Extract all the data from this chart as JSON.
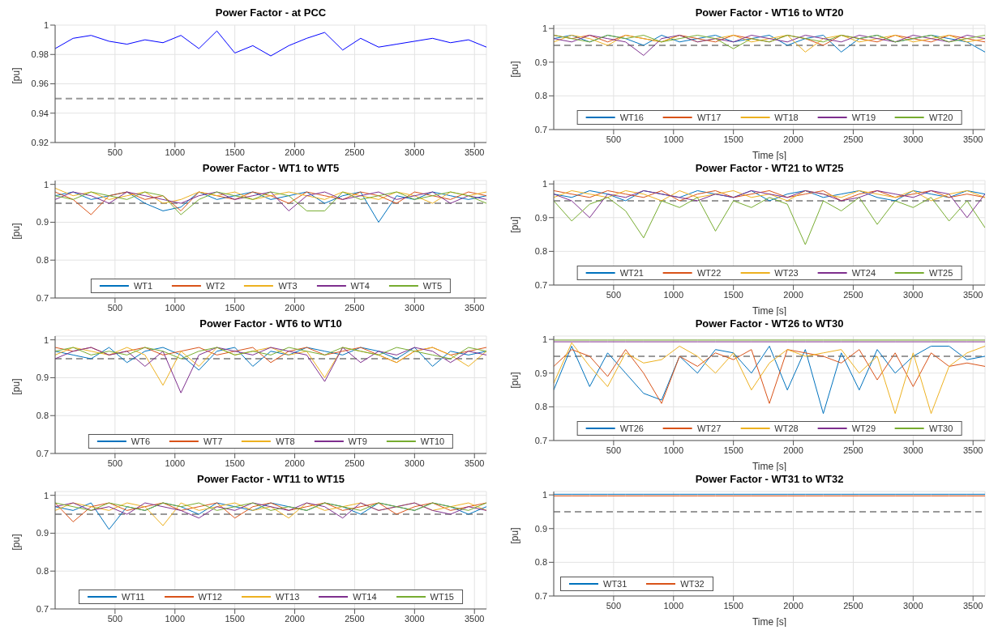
{
  "chart_data": [
    {
      "type": "line",
      "title": "Power Factor - at PCC",
      "ylabel": "[pu]",
      "x": [
        0,
        150,
        300,
        450,
        600,
        750,
        900,
        1050,
        1200,
        1350,
        1500,
        1650,
        1800,
        1950,
        2100,
        2250,
        2400,
        2550,
        2700,
        2850,
        3000,
        3150,
        3300,
        3450,
        3600
      ],
      "xlim": [
        0,
        3600
      ],
      "xticks": [
        500,
        1000,
        1500,
        2000,
        2500,
        3000,
        3500
      ],
      "ylim": [
        0.92,
        1
      ],
      "yticks": [
        0.92,
        0.94,
        0.96,
        0.98,
        1
      ],
      "grid": true,
      "ref_lines": [
        {
          "axis": "y",
          "value": 0.95,
          "color": "#999999",
          "line_style": "dashed"
        }
      ],
      "series": [
        {
          "color": "#0000ff",
          "values": [
            0.984,
            0.991,
            0.993,
            0.989,
            0.987,
            0.99,
            0.988,
            0.993,
            0.984,
            0.996,
            0.981,
            0.986,
            0.979,
            0.986,
            0.991,
            0.995,
            0.983,
            0.991,
            0.985,
            0.987,
            0.989,
            0.991,
            0.988,
            0.99,
            0.985
          ]
        }
      ]
    },
    {
      "type": "line",
      "title": "Power Factor - WT16 to WT20",
      "xlabel": "Time [s]",
      "ylabel": "[pu]",
      "x": [
        0,
        150,
        300,
        450,
        600,
        750,
        900,
        1050,
        1200,
        1350,
        1500,
        1650,
        1800,
        1950,
        2100,
        2250,
        2400,
        2550,
        2700,
        2850,
        3000,
        3150,
        3300,
        3450,
        3600
      ],
      "xlim": [
        0,
        3600
      ],
      "xticks": [
        500,
        1000,
        1500,
        2000,
        2500,
        3000,
        3500
      ],
      "ylim": [
        0.7,
        1.01
      ],
      "yticks": [
        0.7,
        0.8,
        0.9,
        1
      ],
      "grid": true,
      "legend": "bottom",
      "ref_lines": [
        {
          "axis": "y",
          "value": 0.95,
          "color": "#999999",
          "line_style": "dashed"
        }
      ],
      "series": [
        {
          "name": "WT16",
          "color": "#0072bd",
          "values": [
            0.97,
            0.98,
            0.96,
            0.98,
            0.97,
            0.95,
            0.98,
            0.96,
            0.97,
            0.98,
            0.96,
            0.97,
            0.98,
            0.95,
            0.97,
            0.98,
            0.93,
            0.97,
            0.98,
            0.96,
            0.97,
            0.98,
            0.97,
            0.96,
            0.93
          ]
        },
        {
          "name": "WT17",
          "color": "#d95319",
          "values": [
            0.98,
            0.97,
            0.98,
            0.96,
            0.98,
            0.97,
            0.96,
            0.98,
            0.97,
            0.96,
            0.98,
            0.97,
            0.96,
            0.98,
            0.97,
            0.95,
            0.98,
            0.97,
            0.96,
            0.98,
            0.97,
            0.96,
            0.98,
            0.97,
            0.96
          ]
        },
        {
          "name": "WT18",
          "color": "#edb120",
          "values": [
            0.96,
            0.98,
            0.97,
            0.95,
            0.98,
            0.97,
            0.96,
            0.98,
            0.96,
            0.97,
            0.98,
            0.96,
            0.97,
            0.98,
            0.93,
            0.97,
            0.98,
            0.96,
            0.97,
            0.98,
            0.96,
            0.97,
            0.98,
            0.96,
            0.97
          ]
        },
        {
          "name": "WT19",
          "color": "#7e2f8e",
          "values": [
            0.97,
            0.96,
            0.98,
            0.97,
            0.96,
            0.92,
            0.97,
            0.98,
            0.96,
            0.97,
            0.96,
            0.98,
            0.97,
            0.96,
            0.98,
            0.97,
            0.96,
            0.98,
            0.97,
            0.96,
            0.98,
            0.97,
            0.96,
            0.98,
            0.97
          ]
        },
        {
          "name": "WT20",
          "color": "#77ac30",
          "values": [
            0.98,
            0.97,
            0.96,
            0.98,
            0.97,
            0.98,
            0.96,
            0.97,
            0.98,
            0.97,
            0.94,
            0.97,
            0.96,
            0.98,
            0.97,
            0.96,
            0.98,
            0.97,
            0.98,
            0.96,
            0.97,
            0.98,
            0.96,
            0.97,
            0.98
          ]
        }
      ]
    },
    {
      "type": "line",
      "title": "Power Factor - WT1 to WT5",
      "ylabel": "[pu]",
      "x": [
        0,
        150,
        300,
        450,
        600,
        750,
        900,
        1050,
        1200,
        1350,
        1500,
        1650,
        1800,
        1950,
        2100,
        2250,
        2400,
        2550,
        2700,
        2850,
        3000,
        3150,
        3300,
        3450,
        3600
      ],
      "xlim": [
        0,
        3600
      ],
      "xticks": [
        500,
        1000,
        1500,
        2000,
        2500,
        3000,
        3500
      ],
      "ylim": [
        0.7,
        1.01
      ],
      "yticks": [
        0.7,
        0.8,
        0.9,
        1
      ],
      "grid": true,
      "legend": "bottom",
      "ref_lines": [
        {
          "axis": "y",
          "value": 0.95,
          "color": "#999999",
          "line_style": "dashed"
        }
      ],
      "series": [
        {
          "name": "WT1",
          "color": "#0072bd",
          "values": [
            0.97,
            0.98,
            0.96,
            0.97,
            0.98,
            0.95,
            0.93,
            0.94,
            0.98,
            0.96,
            0.97,
            0.98,
            0.96,
            0.97,
            0.98,
            0.95,
            0.97,
            0.98,
            0.9,
            0.97,
            0.96,
            0.98,
            0.97,
            0.96,
            0.97
          ]
        },
        {
          "name": "WT2",
          "color": "#d95319",
          "values": [
            0.98,
            0.96,
            0.92,
            0.97,
            0.98,
            0.96,
            0.97,
            0.93,
            0.98,
            0.97,
            0.96,
            0.98,
            0.97,
            0.95,
            0.98,
            0.97,
            0.96,
            0.98,
            0.97,
            0.95,
            0.98,
            0.97,
            0.96,
            0.98,
            0.97
          ]
        },
        {
          "name": "WT3",
          "color": "#edb120",
          "values": [
            0.99,
            0.97,
            0.98,
            0.96,
            0.97,
            0.98,
            0.95,
            0.96,
            0.98,
            0.97,
            0.98,
            0.96,
            0.97,
            0.98,
            0.97,
            0.96,
            0.98,
            0.97,
            0.96,
            0.98,
            0.97,
            0.95,
            0.98,
            0.97,
            0.98
          ]
        },
        {
          "name": "WT4",
          "color": "#7e2f8e",
          "values": [
            0.96,
            0.98,
            0.97,
            0.95,
            0.98,
            0.97,
            0.96,
            0.95,
            0.97,
            0.98,
            0.96,
            0.97,
            0.98,
            0.93,
            0.97,
            0.98,
            0.96,
            0.97,
            0.98,
            0.96,
            0.97,
            0.98,
            0.95,
            0.97,
            0.96
          ]
        },
        {
          "name": "WT5",
          "color": "#77ac30",
          "values": [
            0.97,
            0.96,
            0.98,
            0.97,
            0.96,
            0.98,
            0.97,
            0.92,
            0.96,
            0.98,
            0.97,
            0.96,
            0.98,
            0.97,
            0.93,
            0.93,
            0.98,
            0.96,
            0.97,
            0.98,
            0.96,
            0.97,
            0.98,
            0.97,
            0.95
          ]
        }
      ]
    },
    {
      "type": "line",
      "title": "Power Factor - WT21 to WT25",
      "xlabel": "Time [s]",
      "ylabel": "[pu]",
      "x": [
        0,
        150,
        300,
        450,
        600,
        750,
        900,
        1050,
        1200,
        1350,
        1500,
        1650,
        1800,
        1950,
        2100,
        2250,
        2400,
        2550,
        2700,
        2850,
        3000,
        3150,
        3300,
        3450,
        3600
      ],
      "xlim": [
        0,
        3600
      ],
      "xticks": [
        500,
        1000,
        1500,
        2000,
        2500,
        3000,
        3500
      ],
      "ylim": [
        0.7,
        1.01
      ],
      "yticks": [
        0.7,
        0.8,
        0.9,
        1
      ],
      "grid": true,
      "legend": "bottom",
      "ref_lines": [
        {
          "axis": "y",
          "value": 0.95,
          "color": "#999999",
          "line_style": "dashed"
        }
      ],
      "series": [
        {
          "name": "WT21",
          "color": "#0072bd",
          "values": [
            0.97,
            0.96,
            0.98,
            0.97,
            0.95,
            0.98,
            0.97,
            0.96,
            0.98,
            0.97,
            0.96,
            0.98,
            0.95,
            0.97,
            0.98,
            0.96,
            0.97,
            0.98,
            0.96,
            0.95,
            0.98,
            0.97,
            0.96,
            0.98,
            0.97
          ]
        },
        {
          "name": "WT22",
          "color": "#d95319",
          "values": [
            0.98,
            0.97,
            0.96,
            0.98,
            0.97,
            0.96,
            0.98,
            0.95,
            0.97,
            0.98,
            0.96,
            0.97,
            0.98,
            0.96,
            0.97,
            0.98,
            0.95,
            0.97,
            0.98,
            0.96,
            0.97,
            0.98,
            0.96,
            0.97,
            0.96
          ]
        },
        {
          "name": "WT23",
          "color": "#edb120",
          "values": [
            0.96,
            0.98,
            0.97,
            0.96,
            0.98,
            0.97,
            0.95,
            0.98,
            0.96,
            0.97,
            0.98,
            0.96,
            0.97,
            0.95,
            0.98,
            0.97,
            0.96,
            0.98,
            0.97,
            0.96,
            0.98,
            0.95,
            0.97,
            0.98,
            0.96
          ]
        },
        {
          "name": "WT24",
          "color": "#7e2f8e",
          "values": [
            0.97,
            0.95,
            0.9,
            0.97,
            0.96,
            0.98,
            0.97,
            0.96,
            0.95,
            0.97,
            0.96,
            0.98,
            0.97,
            0.96,
            0.98,
            0.97,
            0.95,
            0.96,
            0.98,
            0.97,
            0.96,
            0.98,
            0.97,
            0.9,
            0.97
          ]
        },
        {
          "name": "WT25",
          "color": "#77ac30",
          "values": [
            0.95,
            0.89,
            0.94,
            0.96,
            0.92,
            0.84,
            0.95,
            0.93,
            0.96,
            0.86,
            0.95,
            0.93,
            0.96,
            0.94,
            0.82,
            0.95,
            0.92,
            0.96,
            0.88,
            0.95,
            0.93,
            0.96,
            0.89,
            0.95,
            0.87
          ]
        }
      ]
    },
    {
      "type": "line",
      "title": "Power Factor - WT6 to WT10",
      "ylabel": "[pu]",
      "x": [
        0,
        150,
        300,
        450,
        600,
        750,
        900,
        1050,
        1200,
        1350,
        1500,
        1650,
        1800,
        1950,
        2100,
        2250,
        2400,
        2550,
        2700,
        2850,
        3000,
        3150,
        3300,
        3450,
        3600
      ],
      "xlim": [
        0,
        3600
      ],
      "xticks": [
        500,
        1000,
        1500,
        2000,
        2500,
        3000,
        3500
      ],
      "ylim": [
        0.7,
        1.01
      ],
      "yticks": [
        0.7,
        0.8,
        0.9,
        1
      ],
      "grid": true,
      "legend": "bottom",
      "ref_lines": [
        {
          "axis": "y",
          "value": 0.95,
          "color": "#999999",
          "line_style": "dashed"
        }
      ],
      "series": [
        {
          "name": "WT6",
          "color": "#0072bd",
          "values": [
            0.97,
            0.96,
            0.95,
            0.98,
            0.94,
            0.97,
            0.98,
            0.96,
            0.92,
            0.97,
            0.98,
            0.93,
            0.97,
            0.96,
            0.98,
            0.97,
            0.96,
            0.98,
            0.97,
            0.95,
            0.98,
            0.93,
            0.97,
            0.96,
            0.97
          ]
        },
        {
          "name": "WT7",
          "color": "#d95319",
          "values": [
            0.98,
            0.97,
            0.98,
            0.96,
            0.97,
            0.98,
            0.96,
            0.97,
            0.98,
            0.96,
            0.97,
            0.98,
            0.94,
            0.97,
            0.98,
            0.96,
            0.97,
            0.98,
            0.96,
            0.94,
            0.97,
            0.98,
            0.96,
            0.97,
            0.98
          ]
        },
        {
          "name": "WT8",
          "color": "#edb120",
          "values": [
            0.96,
            0.98,
            0.97,
            0.96,
            0.98,
            0.96,
            0.88,
            0.97,
            0.93,
            0.98,
            0.96,
            0.97,
            0.98,
            0.96,
            0.97,
            0.9,
            0.98,
            0.97,
            0.96,
            0.94,
            0.97,
            0.98,
            0.96,
            0.93,
            0.97
          ]
        },
        {
          "name": "WT9",
          "color": "#7e2f8e",
          "values": [
            0.95,
            0.97,
            0.98,
            0.96,
            0.97,
            0.93,
            0.97,
            0.86,
            0.96,
            0.98,
            0.97,
            0.96,
            0.98,
            0.97,
            0.96,
            0.89,
            0.98,
            0.94,
            0.97,
            0.96,
            0.98,
            0.97,
            0.94,
            0.97,
            0.96
          ]
        },
        {
          "name": "WT10",
          "color": "#77ac30",
          "values": [
            0.97,
            0.98,
            0.96,
            0.97,
            0.96,
            0.98,
            0.97,
            0.95,
            0.97,
            0.98,
            0.96,
            0.97,
            0.96,
            0.98,
            0.97,
            0.96,
            0.98,
            0.97,
            0.96,
            0.98,
            0.97,
            0.96,
            0.95,
            0.98,
            0.97
          ]
        }
      ]
    },
    {
      "type": "line",
      "title": "Power Factor - WT26 to WT30",
      "xlabel": "Time [s]",
      "ylabel": "[pu]",
      "x": [
        0,
        150,
        300,
        450,
        600,
        750,
        900,
        1050,
        1200,
        1350,
        1500,
        1650,
        1800,
        1950,
        2100,
        2250,
        2400,
        2550,
        2700,
        2850,
        3000,
        3150,
        3300,
        3450,
        3600
      ],
      "xlim": [
        0,
        3600
      ],
      "xticks": [
        500,
        1000,
        1500,
        2000,
        2500,
        3000,
        3500
      ],
      "ylim": [
        0.7,
        1.01
      ],
      "yticks": [
        0.7,
        0.8,
        0.9,
        1
      ],
      "grid": true,
      "legend": "bottom",
      "ref_lines": [
        {
          "axis": "y",
          "value": 0.95,
          "color": "#999999",
          "line_style": "dashed"
        }
      ],
      "series": [
        {
          "name": "WT26",
          "color": "#0072bd",
          "values": [
            0.85,
            0.98,
            0.86,
            0.96,
            0.9,
            0.84,
            0.82,
            0.95,
            0.9,
            0.97,
            0.96,
            0.9,
            0.98,
            0.85,
            0.97,
            0.78,
            0.96,
            0.85,
            0.97,
            0.9,
            0.95,
            0.98,
            0.98,
            0.94,
            0.95
          ]
        },
        {
          "name": "WT27",
          "color": "#d95319",
          "values": [
            0.92,
            0.97,
            0.95,
            0.89,
            0.97,
            0.9,
            0.81,
            0.95,
            0.92,
            0.96,
            0.94,
            0.97,
            0.81,
            0.97,
            0.96,
            0.95,
            0.93,
            0.97,
            0.88,
            0.96,
            0.86,
            0.96,
            0.92,
            0.93,
            0.92
          ]
        },
        {
          "name": "WT28",
          "color": "#edb120",
          "values": [
            0.87,
            0.99,
            0.92,
            0.86,
            0.96,
            0.93,
            0.94,
            0.98,
            0.95,
            0.9,
            0.96,
            0.85,
            0.93,
            0.97,
            0.95,
            0.96,
            0.97,
            0.9,
            0.95,
            0.78,
            0.96,
            0.78,
            0.92,
            0.96,
            0.98
          ]
        },
        {
          "name": "WT29",
          "color": "#7e2f8e",
          "values": [
            0.993,
            0.993,
            0.993,
            0.993,
            0.993,
            0.993,
            0.993,
            0.993,
            0.993,
            0.993,
            0.993,
            0.993,
            0.993,
            0.993,
            0.993,
            0.993,
            0.993,
            0.993,
            0.993,
            0.993,
            0.993,
            0.993,
            0.993,
            0.993,
            0.993
          ]
        },
        {
          "name": "WT30",
          "color": "#77ac30",
          "values": [
            0.998,
            0.998,
            0.998,
            0.998,
            0.998,
            0.998,
            0.998,
            0.998,
            0.998,
            0.998,
            0.998,
            0.998,
            0.998,
            0.998,
            0.998,
            0.998,
            0.998,
            0.998,
            0.998,
            0.998,
            0.998,
            0.998,
            0.998,
            0.998,
            0.998
          ]
        }
      ]
    },
    {
      "type": "line",
      "title": "Power Factor - WT11 to WT15",
      "ylabel": "[pu]",
      "x": [
        0,
        150,
        300,
        450,
        600,
        750,
        900,
        1050,
        1200,
        1350,
        1500,
        1650,
        1800,
        1950,
        2100,
        2250,
        2400,
        2550,
        2700,
        2850,
        3000,
        3150,
        3300,
        3450,
        3600
      ],
      "xlim": [
        0,
        3600
      ],
      "xticks": [
        500,
        1000,
        1500,
        2000,
        2500,
        3000,
        3500
      ],
      "ylim": [
        0.7,
        1.01
      ],
      "yticks": [
        0.7,
        0.8,
        0.9,
        1
      ],
      "grid": true,
      "legend": "bottom",
      "ref_lines": [
        {
          "axis": "y",
          "value": 0.95,
          "color": "#999999",
          "line_style": "dashed"
        }
      ],
      "series": [
        {
          "name": "WT11",
          "color": "#0072bd",
          "values": [
            0.97,
            0.96,
            0.98,
            0.91,
            0.97,
            0.96,
            0.98,
            0.97,
            0.95,
            0.98,
            0.97,
            0.96,
            0.98,
            0.97,
            0.96,
            0.98,
            0.97,
            0.95,
            0.98,
            0.97,
            0.96,
            0.98,
            0.97,
            0.95,
            0.97
          ]
        },
        {
          "name": "WT12",
          "color": "#d95319",
          "values": [
            0.98,
            0.93,
            0.97,
            0.98,
            0.96,
            0.97,
            0.98,
            0.96,
            0.97,
            0.98,
            0.94,
            0.97,
            0.98,
            0.96,
            0.97,
            0.98,
            0.96,
            0.97,
            0.98,
            0.95,
            0.97,
            0.98,
            0.96,
            0.97,
            0.98
          ]
        },
        {
          "name": "WT13",
          "color": "#edb120",
          "values": [
            0.96,
            0.98,
            0.97,
            0.96,
            0.98,
            0.97,
            0.92,
            0.98,
            0.96,
            0.97,
            0.98,
            0.96,
            0.97,
            0.94,
            0.98,
            0.96,
            0.97,
            0.98,
            0.96,
            0.97,
            0.98,
            0.96,
            0.97,
            0.98,
            0.96
          ]
        },
        {
          "name": "WT14",
          "color": "#7e2f8e",
          "values": [
            0.97,
            0.98,
            0.96,
            0.97,
            0.95,
            0.98,
            0.97,
            0.96,
            0.94,
            0.97,
            0.96,
            0.98,
            0.97,
            0.96,
            0.98,
            0.97,
            0.94,
            0.98,
            0.96,
            0.97,
            0.98,
            0.96,
            0.95,
            0.97,
            0.96
          ]
        },
        {
          "name": "WT15",
          "color": "#77ac30",
          "values": [
            0.98,
            0.97,
            0.96,
            0.98,
            0.97,
            0.96,
            0.98,
            0.97,
            0.98,
            0.96,
            0.97,
            0.98,
            0.96,
            0.97,
            0.96,
            0.98,
            0.97,
            0.96,
            0.98,
            0.97,
            0.96,
            0.98,
            0.97,
            0.96,
            0.98
          ]
        }
      ]
    },
    {
      "type": "line",
      "title": "Power Factor - WT31 to WT32",
      "xlabel": "Time [s]",
      "ylabel": "[pu]",
      "x": [
        0,
        150,
        300,
        450,
        600,
        750,
        900,
        1050,
        1200,
        1350,
        1500,
        1650,
        1800,
        1950,
        2100,
        2250,
        2400,
        2550,
        2700,
        2850,
        3000,
        3150,
        3300,
        3450,
        3600
      ],
      "xlim": [
        0,
        3600
      ],
      "xticks": [
        500,
        1000,
        1500,
        2000,
        2500,
        3000,
        3500
      ],
      "ylim": [
        0.7,
        1.01
      ],
      "yticks": [
        0.7,
        0.8,
        0.9,
        1
      ],
      "grid": true,
      "legend": "bottom left",
      "ref_lines": [
        {
          "axis": "y",
          "value": 0.95,
          "color": "#999999",
          "line_style": "dashed"
        }
      ],
      "series": [
        {
          "name": "WT31",
          "color": "#0072bd",
          "values": [
            1.002,
            1.002,
            1.002,
            1.002,
            1.002,
            1.002,
            1.002,
            1.002,
            1.002,
            1.002,
            1.002,
            1.002,
            1.002,
            1.002,
            1.002,
            1.002,
            1.002,
            1.002,
            1.002,
            1.002,
            1.002,
            1.002,
            1.002,
            1.002,
            1.002
          ]
        },
        {
          "name": "WT32",
          "color": "#d95319",
          "values": [
            0.997,
            0.997,
            0.997,
            0.997,
            0.997,
            0.997,
            0.997,
            0.997,
            0.997,
            0.997,
            0.997,
            0.997,
            0.997,
            0.997,
            0.997,
            0.997,
            0.997,
            0.997,
            0.997,
            0.997,
            0.997,
            0.997,
            0.997,
            0.997,
            0.997
          ]
        }
      ]
    }
  ]
}
